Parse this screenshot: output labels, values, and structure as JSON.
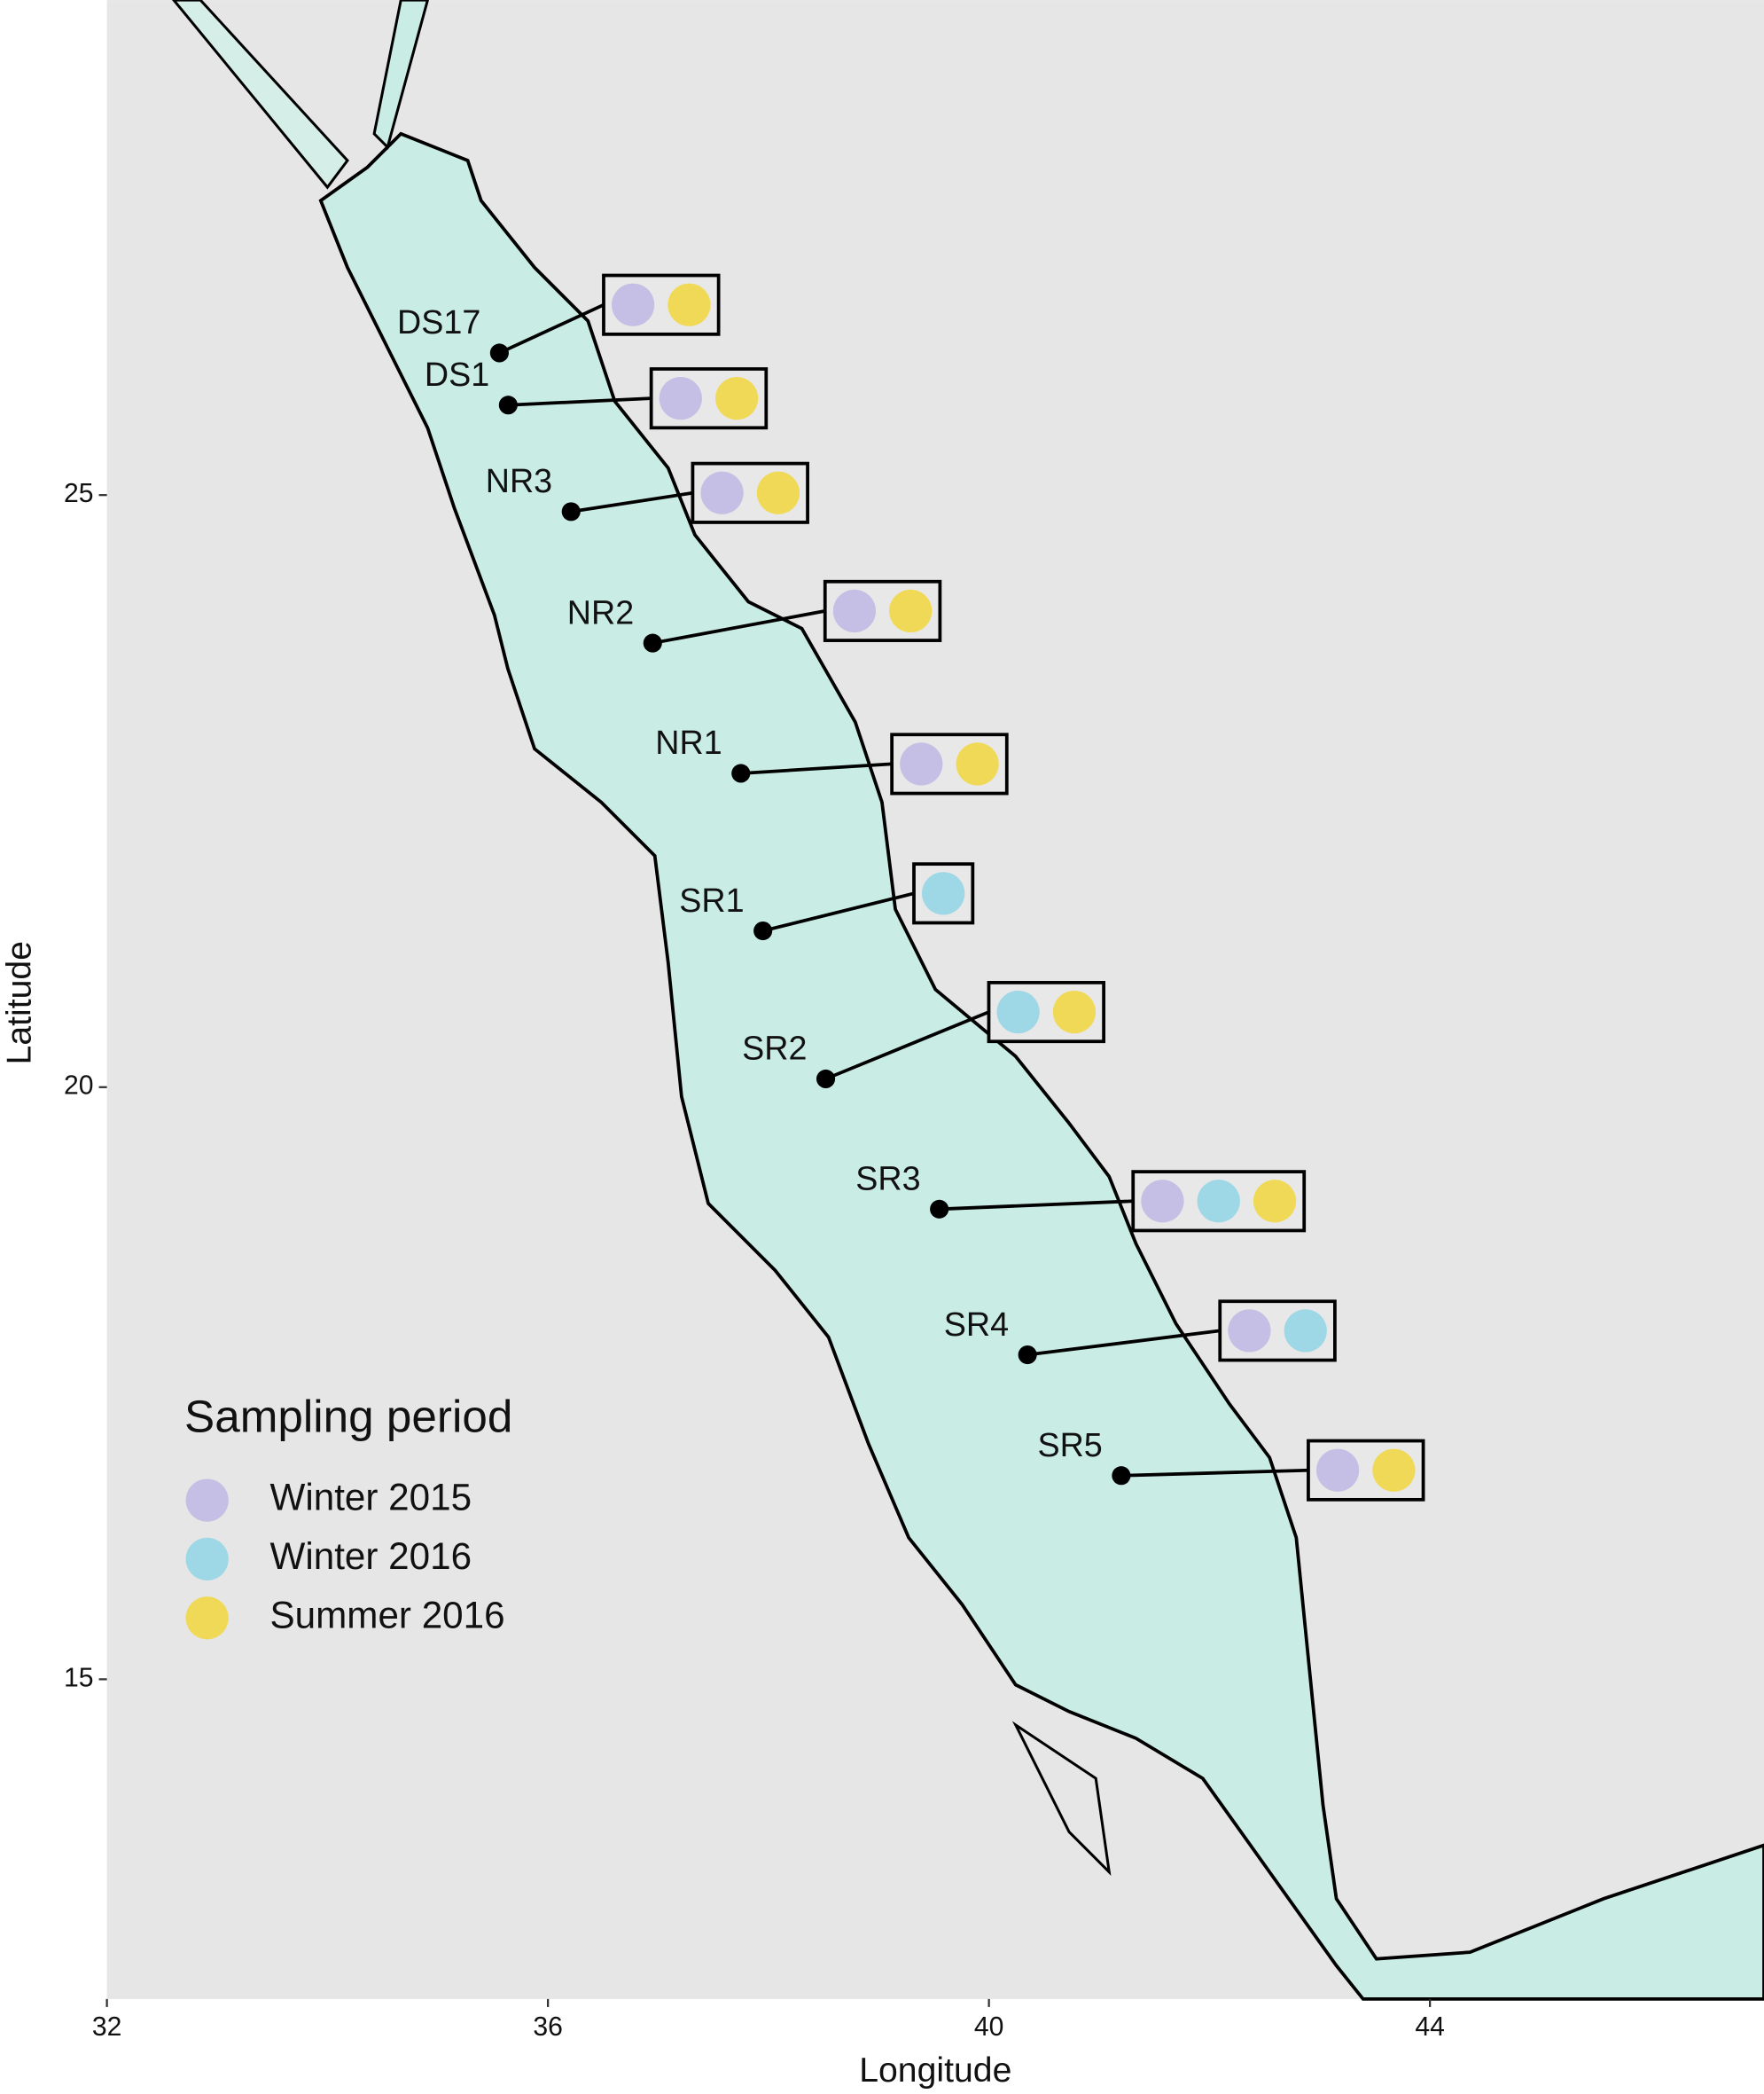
{
  "chart_data": {
    "type": "map",
    "x_label": "Longitude",
    "y_label": "Latitude",
    "xlim": [
      32,
      47.03
    ],
    "ylim": [
      12.3,
      29.18
    ],
    "xticks": [
      32,
      36,
      40,
      44
    ],
    "yticks": [
      15,
      20,
      25
    ],
    "legend": {
      "title": "Sampling period",
      "position": "bottom-left"
    },
    "series": [
      {
        "name": "Winter 2015",
        "color": "#c6bfe5"
      },
      {
        "name": "Winter 2016",
        "color": "#9ed7e5"
      },
      {
        "name": "Summer 2016",
        "color": "#f1d958"
      }
    ],
    "stations": [
      {
        "name": "DS17",
        "lon": 35.56,
        "lat": 26.2,
        "periods": [
          "Winter 2015",
          "Summer 2016"
        ]
      },
      {
        "name": "DS1",
        "lon": 35.64,
        "lat": 25.76,
        "periods": [
          "Winter 2015",
          "Summer 2016"
        ]
      },
      {
        "name": "NR3",
        "lon": 36.21,
        "lat": 24.86,
        "periods": [
          "Winter 2015",
          "Summer 2016"
        ]
      },
      {
        "name": "NR2",
        "lon": 36.95,
        "lat": 23.75,
        "periods": [
          "Winter 2015",
          "Summer 2016"
        ]
      },
      {
        "name": "NR1",
        "lon": 37.75,
        "lat": 22.65,
        "periods": [
          "Winter 2015",
          "Summer 2016"
        ]
      },
      {
        "name": "SR1",
        "lon": 37.95,
        "lat": 21.32,
        "periods": [
          "Winter 2016"
        ]
      },
      {
        "name": "SR2",
        "lon": 38.52,
        "lat": 20.07,
        "periods": [
          "Winter 2016",
          "Summer 2016"
        ]
      },
      {
        "name": "SR3",
        "lon": 39.55,
        "lat": 18.97,
        "periods": [
          "Winter 2015",
          "Winter 2016",
          "Summer 2016"
        ]
      },
      {
        "name": "SR4",
        "lon": 40.35,
        "lat": 17.74,
        "periods": [
          "Winter 2015",
          "Winter 2016"
        ]
      },
      {
        "name": "SR5",
        "lon": 41.2,
        "lat": 16.72,
        "periods": [
          "Winter 2015",
          "Summer 2016"
        ]
      }
    ]
  }
}
